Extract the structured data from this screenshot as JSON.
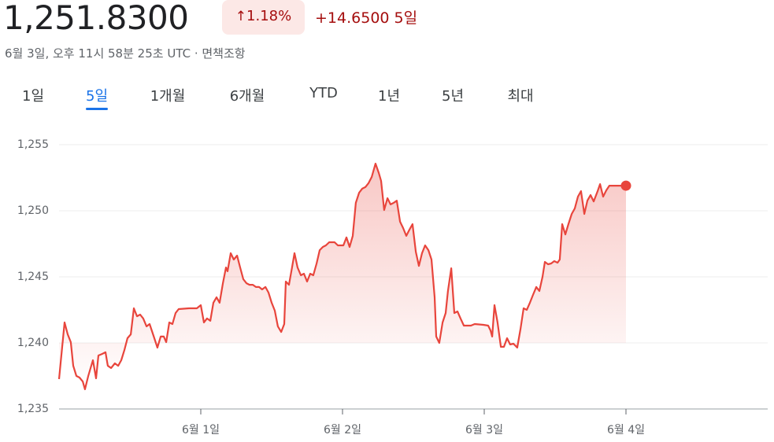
{
  "header": {
    "price": "1,251.8300",
    "change_percent": "1.18%",
    "change": "+14.6500",
    "period": "5일",
    "timestamp": "6월 3일, 오후 11시 58분 25초 UTC",
    "disclaimer": "면책조항"
  },
  "tabs": {
    "items": [
      "1일",
      "5일",
      "1개월",
      "6개월",
      "YTD",
      "1년",
      "5년",
      "최대"
    ],
    "active": 1
  },
  "chart_data": {
    "type": "line",
    "x": [
      0,
      0.039,
      0.061,
      0.083,
      0.1,
      0.122,
      0.144,
      0.167,
      0.183,
      0.206,
      0.239,
      0.261,
      0.278,
      0.306,
      0.328,
      0.344,
      0.367,
      0.394,
      0.417,
      0.439,
      0.461,
      0.483,
      0.506,
      0.528,
      0.55,
      0.572,
      0.594,
      0.617,
      0.639,
      0.672,
      0.694,
      0.717,
      0.739,
      0.756,
      0.778,
      0.8,
      0.822,
      0.844,
      0.917,
      0.972,
      1.0,
      1.022,
      1.044,
      1.067,
      1.089,
      1.111,
      1.133,
      1.156,
      1.178,
      1.189,
      1.211,
      1.233,
      1.256,
      1.278,
      1.3,
      1.322,
      1.344,
      1.367,
      1.389,
      1.411,
      1.433,
      1.456,
      1.478,
      1.5,
      1.522,
      1.544,
      1.567,
      1.589,
      1.6,
      1.622,
      1.644,
      1.661,
      1.683,
      1.706,
      1.728,
      1.75,
      1.772,
      1.794,
      1.817,
      1.839,
      1.861,
      1.883,
      1.906,
      1.944,
      1.967,
      2.006,
      2.028,
      2.05,
      2.072,
      2.094,
      2.117,
      2.139,
      2.161,
      2.183,
      2.206,
      2.233,
      2.256,
      2.272,
      2.294,
      2.317,
      2.339,
      2.361,
      2.383,
      2.406,
      2.428,
      2.45,
      2.472,
      2.494,
      2.517,
      2.539,
      2.561,
      2.583,
      2.606,
      2.628,
      2.65,
      2.661,
      2.683,
      2.706,
      2.728,
      2.744,
      2.767,
      2.789,
      2.811,
      2.833,
      2.856,
      2.906,
      2.933,
      2.994,
      3.028,
      3.044,
      3.056,
      3.072,
      3.094,
      3.117,
      3.139,
      3.161,
      3.183,
      3.206,
      3.233,
      3.256,
      3.278,
      3.3,
      3.322,
      3.344,
      3.367,
      3.389,
      3.411,
      3.428,
      3.45,
      3.472,
      3.494,
      3.517,
      3.533,
      3.55,
      3.572,
      3.594,
      3.617,
      3.639,
      3.661,
      3.683,
      3.706,
      3.728,
      3.75,
      3.772,
      3.8,
      3.817,
      3.839,
      3.861,
      3.883,
      3.972,
      4.0
    ],
    "series": [
      {
        "color": "#e8453c",
        "values": [
          1237.26,
          1241.55,
          1240.65,
          1240.06,
          1238.27,
          1237.5,
          1237.38,
          1237.08,
          1236.49,
          1237.5,
          1238.69,
          1237.32,
          1239.05,
          1239.17,
          1239.29,
          1238.27,
          1238.1,
          1238.45,
          1238.27,
          1238.69,
          1239.46,
          1240.36,
          1240.65,
          1242.62,
          1242.02,
          1242.14,
          1241.85,
          1241.25,
          1241.43,
          1240.36,
          1239.64,
          1240.48,
          1240.48,
          1240.06,
          1241.55,
          1241.43,
          1242.26,
          1242.56,
          1242.62,
          1242.62,
          1242.86,
          1241.55,
          1241.85,
          1241.67,
          1243.04,
          1243.45,
          1243.04,
          1244.52,
          1245.71,
          1245.42,
          1246.79,
          1246.31,
          1246.61,
          1245.71,
          1244.82,
          1244.52,
          1244.4,
          1244.4,
          1244.23,
          1244.23,
          1244.05,
          1244.23,
          1243.81,
          1243.04,
          1242.44,
          1241.25,
          1240.83,
          1241.43,
          1244.64,
          1244.4,
          1245.71,
          1246.79,
          1245.71,
          1245.12,
          1245.24,
          1244.64,
          1245.24,
          1245.12,
          1246.01,
          1247.02,
          1247.26,
          1247.38,
          1247.62,
          1247.62,
          1247.38,
          1247.38,
          1247.98,
          1247.26,
          1248.1,
          1250.6,
          1251.37,
          1251.67,
          1251.79,
          1252.08,
          1252.56,
          1253.57,
          1252.86,
          1252.26,
          1250.06,
          1250.95,
          1250.48,
          1250.6,
          1250.77,
          1249.17,
          1248.69,
          1248.1,
          1248.57,
          1248.99,
          1246.9,
          1245.83,
          1246.79,
          1247.38,
          1247.02,
          1246.31,
          1243.45,
          1240.48,
          1240.0,
          1241.55,
          1242.26,
          1243.93,
          1245.65,
          1242.26,
          1242.38,
          1241.85,
          1241.31,
          1241.31,
          1241.43,
          1241.37,
          1241.31,
          1240.95,
          1240.48,
          1242.86,
          1241.55,
          1239.7,
          1239.7,
          1240.36,
          1239.88,
          1239.94,
          1239.64,
          1241.07,
          1242.62,
          1242.5,
          1243.04,
          1243.63,
          1244.23,
          1243.93,
          1245.0,
          1246.13,
          1245.95,
          1246.01,
          1246.19,
          1246.07,
          1246.31,
          1248.99,
          1248.21,
          1248.99,
          1249.76,
          1250.18,
          1251.07,
          1251.49,
          1249.76,
          1250.77,
          1251.19,
          1250.71,
          1251.49,
          1252.02,
          1251.07,
          1251.55,
          1251.9,
          1251.9,
          1251.9
        ]
      }
    ],
    "xlim": [
      0,
      5
    ],
    "xticks": [
      {
        "value": 1,
        "label": "6월 1일"
      },
      {
        "value": 2,
        "label": "6월 2일"
      },
      {
        "value": 3,
        "label": "6월 3일"
      },
      {
        "value": 4,
        "label": "6월 4일"
      }
    ],
    "ylim": [
      1235,
      1255
    ],
    "yticks": [
      {
        "value": 1235,
        "label": "1,235"
      },
      {
        "value": 1240,
        "label": "1,240"
      },
      {
        "value": 1245,
        "label": "1,245"
      },
      {
        "value": 1250,
        "label": "1,250"
      },
      {
        "value": 1255,
        "label": "1,255"
      }
    ],
    "grid": true
  }
}
